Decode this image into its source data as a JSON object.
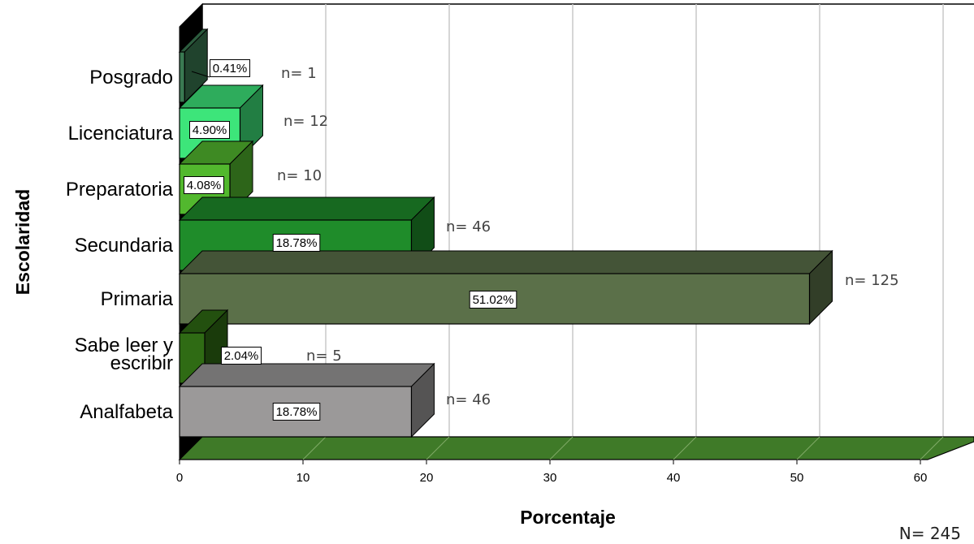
{
  "chart_data": {
    "type": "bar",
    "orientation": "horizontal",
    "style": "3d",
    "xlabel": "Porcentaje",
    "ylabel": "Escolaridad",
    "xlim": [
      0,
      60
    ],
    "xticks": [
      "0",
      "10",
      "20",
      "30",
      "40",
      "50",
      "60"
    ],
    "grid": true,
    "categories": [
      "Posgrado",
      "Licenciatura",
      "Preparatoria",
      "Secundaria",
      "Primaria",
      "Sabe leer y escribir",
      "Analfabeta"
    ],
    "category_lines": [
      [
        "Posgrado"
      ],
      [
        "Licenciatura"
      ],
      [
        "Preparatoria"
      ],
      [
        "Secundaria"
      ],
      [
        "Primaria"
      ],
      [
        "Sabe leer y",
        "escribir"
      ],
      [
        "Analfabeta"
      ]
    ],
    "values": [
      0.41,
      4.9,
      4.08,
      18.78,
      51.02,
      2.04,
      18.78
    ],
    "value_labels": [
      "0.41%",
      "4.90%",
      "4.08%",
      "18.78%",
      "51.02%",
      "2.04%",
      "18.78%"
    ],
    "counts": [
      "n= 1",
      "n= 12",
      "n= 10",
      "n= 46",
      "n= 125",
      "n= 5",
      "n= 46"
    ],
    "colors": [
      "#3a7a52",
      "#3de57a",
      "#52b82e",
      "#1f8c2a",
      "#5b7049",
      "#2f6b14",
      "#9b9999"
    ],
    "floor_color": "#3f7a28",
    "total_label": "N= 245"
  }
}
